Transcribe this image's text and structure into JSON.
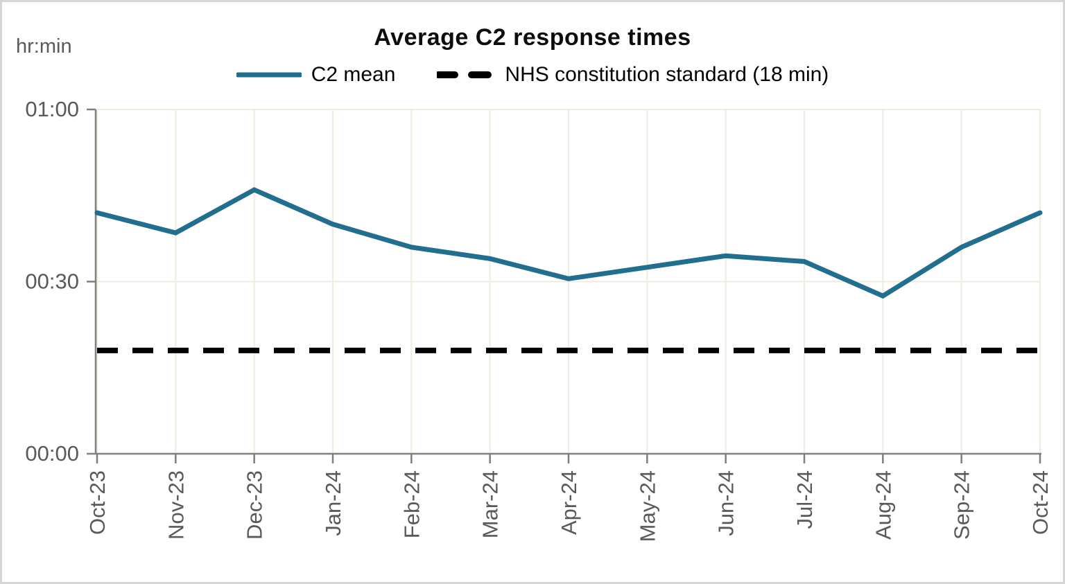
{
  "window": {
    "background": "#ffffff",
    "border_color": "#d6d6d6"
  },
  "chart": {
    "title": "Average C2 response times",
    "unit_label": "hr:min",
    "legend": [
      {
        "label": "C2 mean"
      },
      {
        "label": "NHS constitution standard (18 min)"
      }
    ]
  },
  "chart_data": {
    "type": "line",
    "title": "Average C2 response times",
    "y_unit": "hr:min",
    "x": [
      "Oct-23",
      "Nov-23",
      "Dec-23",
      "Jan-24",
      "Feb-24",
      "Mar-24",
      "Apr-24",
      "May-24",
      "Jun-24",
      "Jul-24",
      "Aug-24",
      "Sep-24",
      "Oct-24"
    ],
    "series": [
      {
        "name": "C2 mean",
        "color": "#226E8E",
        "style": "solid",
        "values_minutes": [
          42,
          38.5,
          46,
          40,
          36,
          34,
          30.5,
          32.5,
          34.5,
          33.5,
          27.5,
          36,
          42
        ]
      },
      {
        "name": "NHS constitution standard (18 min)",
        "color": "#000000",
        "style": "dashed",
        "constant_minutes": 18
      }
    ],
    "y_axis": {
      "min_minutes": 0,
      "max_minutes": 60,
      "ticks": [
        {
          "minutes": 0,
          "label": "00:00"
        },
        {
          "minutes": 30,
          "label": "00:30"
        },
        {
          "minutes": 60,
          "label": "01:00"
        }
      ]
    },
    "x_axis": {
      "label_rotation_deg": -90
    },
    "legend_position": "top",
    "grid": {
      "show_vertical": true,
      "show_horizontal": true,
      "color": "#efebde"
    },
    "axis_color": "#7f7f7f",
    "tick_label_color": "#595959"
  }
}
